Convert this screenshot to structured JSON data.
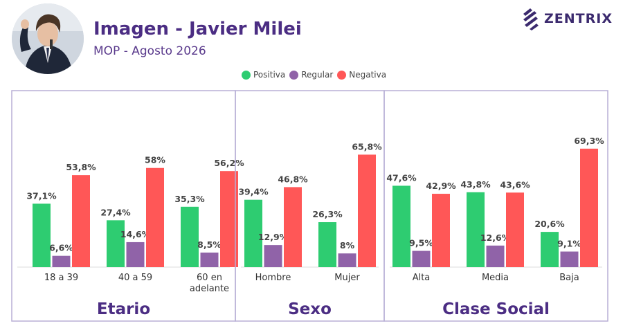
{
  "header": {
    "title": "Imagen - Javier Milei",
    "subtitle": "MOP - Agosto 2026",
    "logo": "ZENTRIX"
  },
  "colors": {
    "positiva": "#2ecc71",
    "regular": "#9063a8",
    "negativa": "#ff5757",
    "frame": "#b8afd6",
    "panel_title": "#4b2d83"
  },
  "icons": [
    "person-photo",
    "zentrix-logo-icon"
  ],
  "chart_data": {
    "type": "bar",
    "legend": [
      "Positiva",
      "Regular",
      "Negativa"
    ],
    "legend_position": "top-center",
    "grid": false,
    "ylim": [
      0,
      75
    ],
    "groups": [
      {
        "title": "Etario",
        "categories": [
          "18 a 39",
          "40 a 59",
          "60 en adelante"
        ],
        "series": [
          {
            "name": "Positiva",
            "values": [
              37.1,
              27.4,
              35.3
            ],
            "labels": [
              "37,1%",
              "27,4%",
              "35,3%"
            ]
          },
          {
            "name": "Regular",
            "values": [
              6.6,
              14.6,
              8.5
            ],
            "labels": [
              "6,6%",
              "14,6%",
              "8,5%"
            ]
          },
          {
            "name": "Negativa",
            "values": [
              53.8,
              58,
              56.2
            ],
            "labels": [
              "53,8%",
              "58%",
              "56,2%"
            ]
          }
        ]
      },
      {
        "title": "Sexo",
        "categories": [
          "Hombre",
          "Mujer"
        ],
        "series": [
          {
            "name": "Positiva",
            "values": [
              39.4,
              26.3
            ],
            "labels": [
              "39,4%",
              "26,3%"
            ]
          },
          {
            "name": "Regular",
            "values": [
              12.9,
              8
            ],
            "labels": [
              "12,9%",
              "8%"
            ]
          },
          {
            "name": "Negativa",
            "values": [
              46.8,
              65.8
            ],
            "labels": [
              "46,8%",
              "65,8%"
            ]
          }
        ]
      },
      {
        "title": "Clase Social",
        "categories": [
          "Alta",
          "Media",
          "Baja"
        ],
        "series": [
          {
            "name": "Positiva",
            "values": [
              47.6,
              43.8,
              20.6
            ],
            "labels": [
              "47,6%",
              "43,8%",
              "20,6%"
            ]
          },
          {
            "name": "Regular",
            "values": [
              9.5,
              12.6,
              9.1
            ],
            "labels": [
              "9,5%",
              "12,6%",
              "9,1%"
            ]
          },
          {
            "name": "Negativa",
            "values": [
              42.9,
              43.6,
              69.3
            ],
            "labels": [
              "42,9%",
              "43,6%",
              "69,3%"
            ]
          }
        ]
      }
    ]
  }
}
